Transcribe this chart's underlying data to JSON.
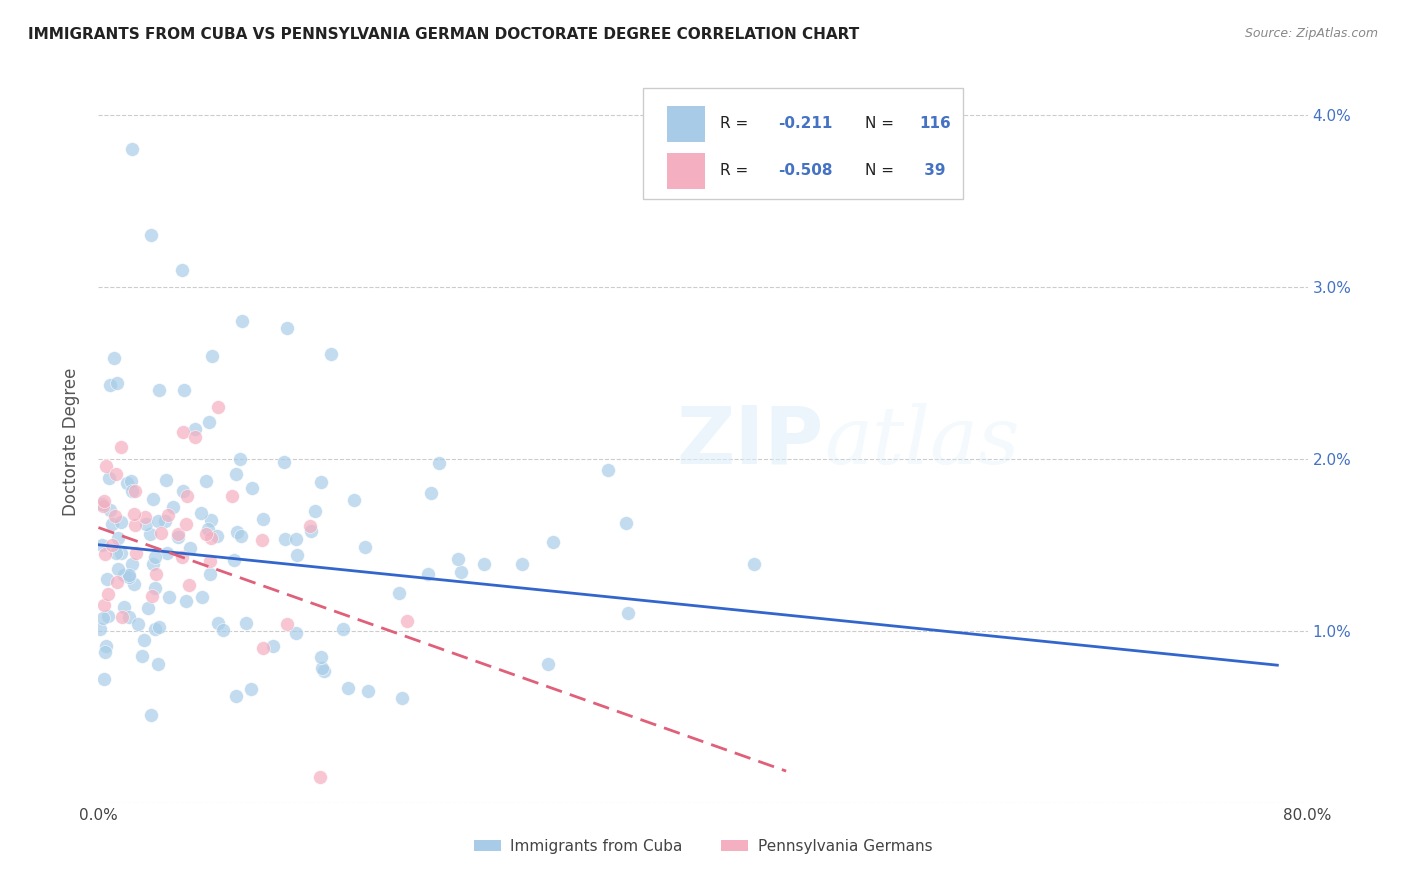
{
  "title": "IMMIGRANTS FROM CUBA VS PENNSYLVANIA GERMAN DOCTORATE DEGREE CORRELATION CHART",
  "source": "Source: ZipAtlas.com",
  "ylabel": "Doctorate Degree",
  "legend_label_blue": "Immigrants from Cuba",
  "legend_label_pink": "Pennsylvania Germans",
  "blue_R": -0.211,
  "blue_N": 116,
  "pink_R": -0.508,
  "pink_N": 39,
  "blue_color": "#a8cce8",
  "pink_color": "#f4afc0",
  "blue_line_color": "#3366cc",
  "pink_line_color": "#e0607a",
  "watermark": "ZIPatlas",
  "background_color": "#ffffff",
  "xlim": [
    0.0,
    0.8
  ],
  "ylim": [
    0.0,
    0.042
  ],
  "yticks": [
    0.0,
    0.01,
    0.02,
    0.03,
    0.04
  ],
  "ytick_labels_right": [
    "",
    "1.0%",
    "2.0%",
    "3.0%",
    "4.0%"
  ],
  "xticks": [
    0.0,
    0.1,
    0.2,
    0.3,
    0.4,
    0.5,
    0.6,
    0.7,
    0.8
  ],
  "xtick_labels": [
    "0.0%",
    "",
    "",
    "",
    "",
    "",
    "",
    "",
    "80.0%"
  ]
}
